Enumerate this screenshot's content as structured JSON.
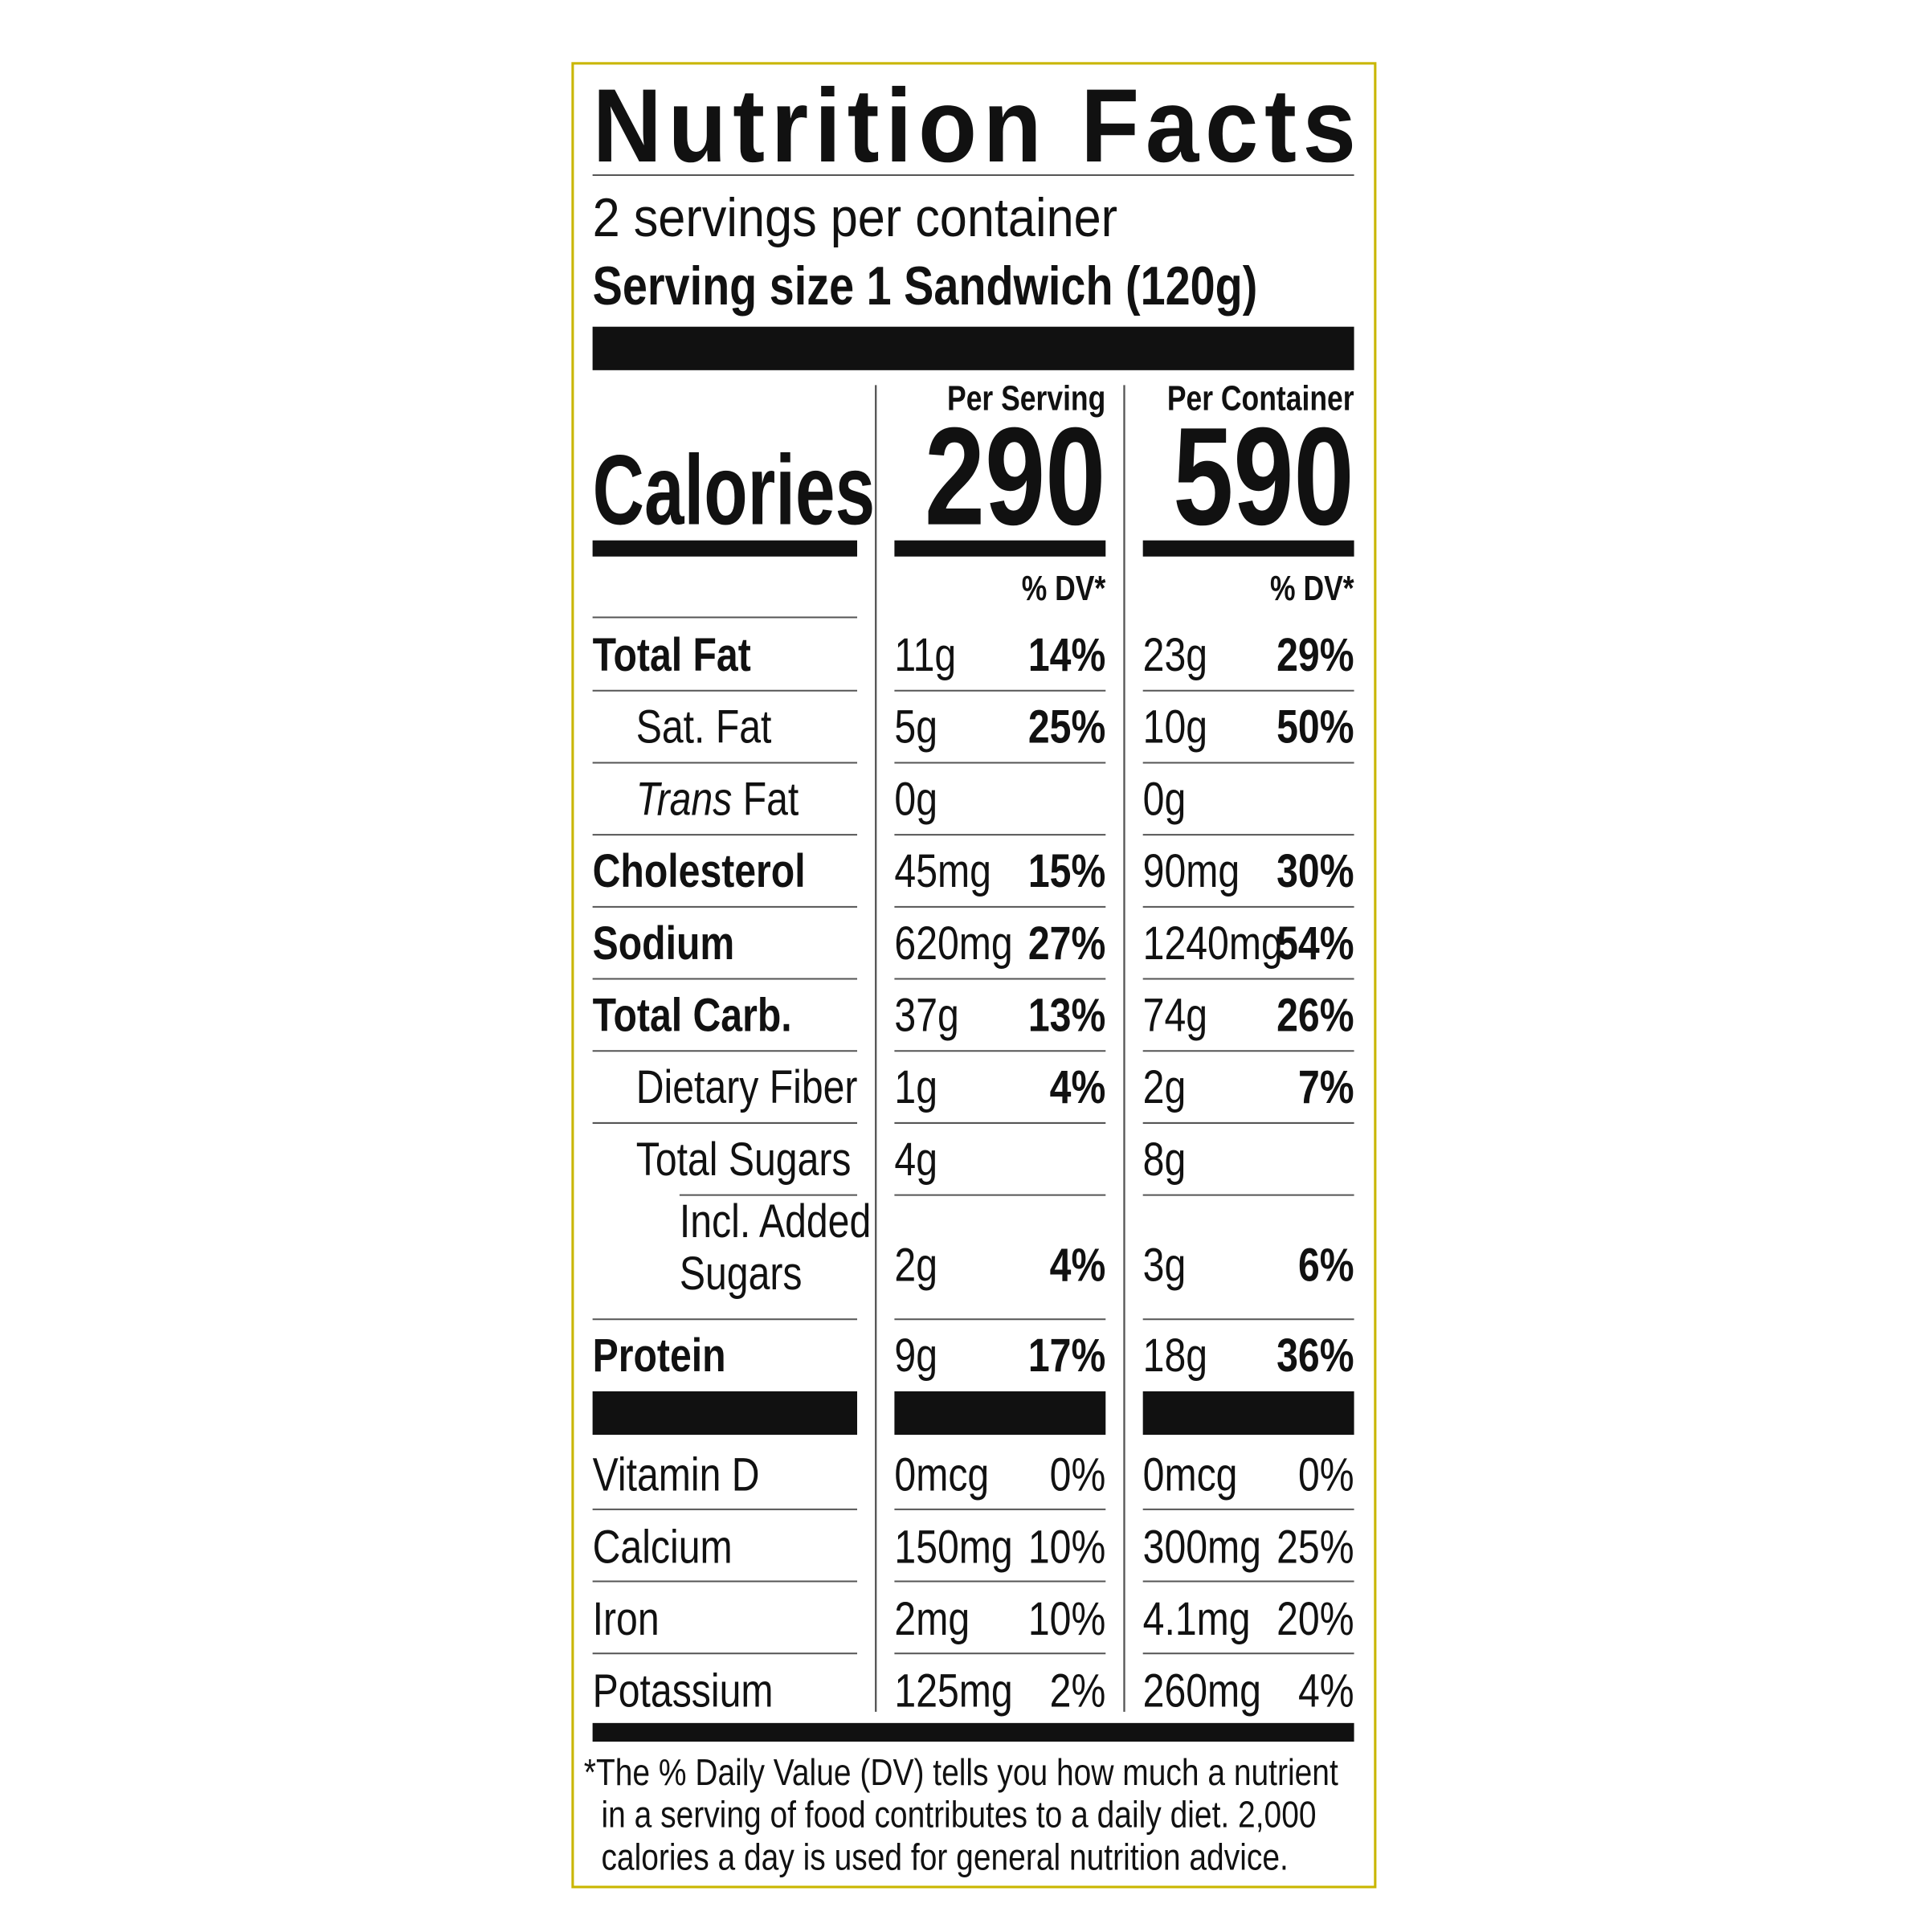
{
  "title": "Nutrition Facts",
  "servings": "2 servings per container",
  "serving_size": "Serving size 1 Sandwich (120g)",
  "columns": [
    "Per Serving",
    "Per Container"
  ],
  "calories": {
    "label": "Calories",
    "values": [
      "290",
      "590"
    ]
  },
  "dv_header": "% DV*",
  "nutrients": [
    {
      "name": [
        "Total Fat"
      ],
      "bold": true,
      "indent": 0,
      "values": [
        [
          "11g",
          "14%"
        ],
        [
          "23g",
          "29%"
        ]
      ]
    },
    {
      "name": [
        "Sat. Fat"
      ],
      "bold": false,
      "indent": 1,
      "values": [
        [
          "5g",
          "25%"
        ],
        [
          "10g",
          "50%"
        ]
      ]
    },
    {
      "prefix": "Trans",
      "name": [
        "Fat"
      ],
      "bold": false,
      "indent": 1,
      "values": [
        [
          "0g"
        ],
        [
          "0g"
        ]
      ]
    },
    {
      "name": [
        "Cholesterol"
      ],
      "bold": true,
      "indent": 0,
      "values": [
        [
          "45mg",
          "15%"
        ],
        [
          "90mg",
          "30%"
        ]
      ]
    },
    {
      "name": [
        "Sodium"
      ],
      "bold": true,
      "indent": 0,
      "values": [
        [
          "620mg",
          "27%"
        ],
        [
          "1240mg",
          "54%"
        ]
      ]
    },
    {
      "name": [
        "Total Carb."
      ],
      "bold": true,
      "indent": 0,
      "values": [
        [
          "37g",
          "13%"
        ],
        [
          "74g",
          "26%"
        ]
      ]
    },
    {
      "name": [
        "Dietary Fiber"
      ],
      "bold": false,
      "indent": 1,
      "values": [
        [
          "1g",
          "4%"
        ],
        [
          "2g",
          "7%"
        ]
      ]
    },
    {
      "name": [
        "Total Sugars"
      ],
      "bold": false,
      "indent": 1,
      "values": [
        [
          "4g"
        ],
        [
          "8g"
        ]
      ]
    },
    {
      "name": [
        "Incl. Added",
        "Sugars"
      ],
      "bold": false,
      "indent": 2,
      "values": [
        [
          "2g",
          "4%"
        ],
        [
          "3g",
          "6%"
        ]
      ]
    },
    {
      "name": [
        "Protein"
      ],
      "bold": true,
      "indent": 0,
      "values": [
        [
          "9g",
          "17%"
        ],
        [
          "18g",
          "36%"
        ]
      ]
    }
  ],
  "vitamins": [
    {
      "name": "Vitamin D",
      "values": [
        [
          "0mcg",
          "0%"
        ],
        [
          "0mcg",
          "0%"
        ]
      ]
    },
    {
      "name": "Calcium",
      "values": [
        [
          "150mg",
          "10%"
        ],
        [
          "300mg",
          "25%"
        ]
      ]
    },
    {
      "name": "Iron",
      "values": [
        [
          "2mg",
          "10%"
        ],
        [
          "4.1mg",
          "20%"
        ]
      ]
    },
    {
      "name": "Potassium",
      "values": [
        [
          "125mg",
          "2%"
        ],
        [
          "260mg",
          "4%"
        ]
      ]
    }
  ],
  "footnote": [
    "*The % Daily Value (DV) tells you how much a nutrient",
    "in a serving of food contributes to a daily diet. 2,000",
    "calories a day is used for general nutrition advice."
  ]
}
